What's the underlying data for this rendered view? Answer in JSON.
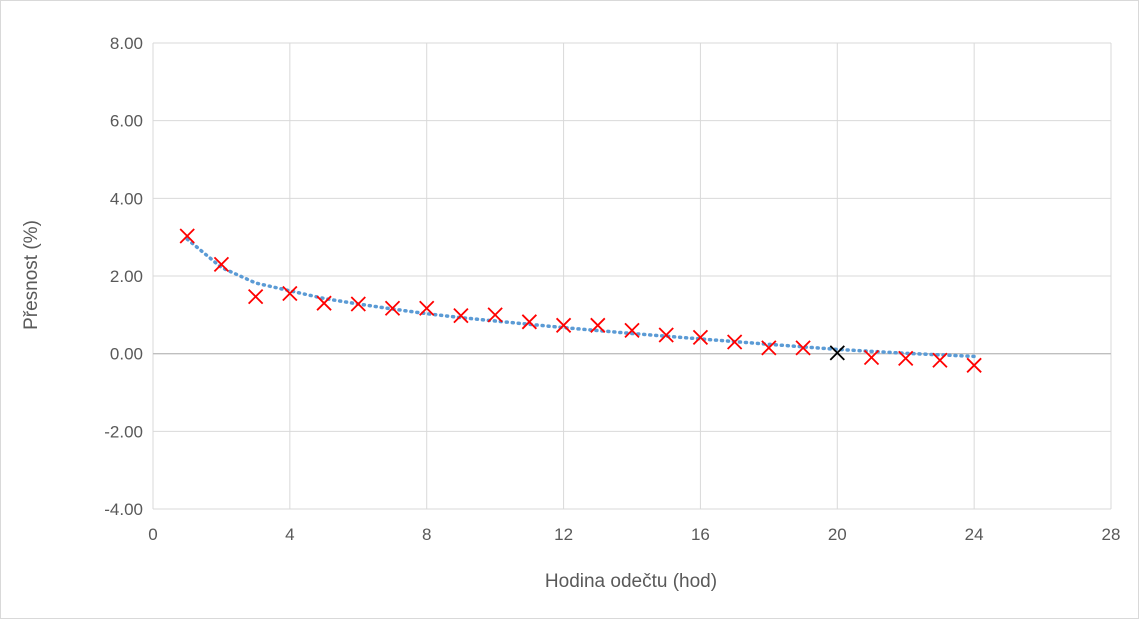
{
  "chart_data": {
    "type": "scatter",
    "title": "",
    "xlabel": "Hodina odečtu (hod)",
    "ylabel": "Přesnost (%)",
    "xlim": [
      0,
      28
    ],
    "ylim": [
      -4,
      8
    ],
    "x_ticks": [
      0,
      4,
      8,
      12,
      16,
      20,
      24,
      28
    ],
    "y_ticks": [
      -4,
      -2,
      0,
      2,
      4,
      6,
      8
    ],
    "y_tick_labels": [
      "-4.00",
      "-2.00",
      "0.00",
      "2.00",
      "4.00",
      "6.00",
      "8.00"
    ],
    "grid": true,
    "legend": "none",
    "series": [
      {
        "marker": "x",
        "color": "#ff0000",
        "points": [
          {
            "x": 1,
            "y": 3.03
          },
          {
            "x": 2,
            "y": 2.3
          },
          {
            "x": 3,
            "y": 1.47
          },
          {
            "x": 4,
            "y": 1.55
          },
          {
            "x": 5,
            "y": 1.3
          },
          {
            "x": 6,
            "y": 1.28
          },
          {
            "x": 7,
            "y": 1.17
          },
          {
            "x": 8,
            "y": 1.17
          },
          {
            "x": 9,
            "y": 0.98
          },
          {
            "x": 10,
            "y": 1.0
          },
          {
            "x": 11,
            "y": 0.82
          },
          {
            "x": 12,
            "y": 0.73
          },
          {
            "x": 13,
            "y": 0.73
          },
          {
            "x": 14,
            "y": 0.6
          },
          {
            "x": 15,
            "y": 0.48
          },
          {
            "x": 16,
            "y": 0.42
          },
          {
            "x": 17,
            "y": 0.3
          },
          {
            "x": 18,
            "y": 0.15
          },
          {
            "x": 19,
            "y": 0.15
          },
          {
            "x": 21,
            "y": -0.1
          },
          {
            "x": 22,
            "y": -0.12
          },
          {
            "x": 23,
            "y": -0.17
          },
          {
            "x": 24,
            "y": -0.3
          }
        ]
      },
      {
        "marker": "x",
        "color": "#000000",
        "points": [
          {
            "x": 20,
            "y": 0.02
          }
        ]
      }
    ],
    "trendline": {
      "style": "dotted",
      "color": "#5b9bd5",
      "points": [
        {
          "x": 1,
          "y": 2.95
        },
        {
          "x": 2,
          "y": 2.22
        },
        {
          "x": 3,
          "y": 1.82
        },
        {
          "x": 4,
          "y": 1.62
        },
        {
          "x": 5,
          "y": 1.42
        },
        {
          "x": 6,
          "y": 1.28
        },
        {
          "x": 7,
          "y": 1.15
        },
        {
          "x": 8,
          "y": 1.03
        },
        {
          "x": 9,
          "y": 0.93
        },
        {
          "x": 10,
          "y": 0.84
        },
        {
          "x": 12,
          "y": 0.67
        },
        {
          "x": 14,
          "y": 0.52
        },
        {
          "x": 16,
          "y": 0.38
        },
        {
          "x": 18,
          "y": 0.24
        },
        {
          "x": 20,
          "y": 0.11
        },
        {
          "x": 22,
          "y": 0.01
        },
        {
          "x": 24,
          "y": -0.07
        }
      ]
    }
  },
  "colors": {
    "gridline": "#d9d9d9",
    "zero_line": "#bfbfbf",
    "text": "#595959",
    "border": "#d9d9d9"
  }
}
